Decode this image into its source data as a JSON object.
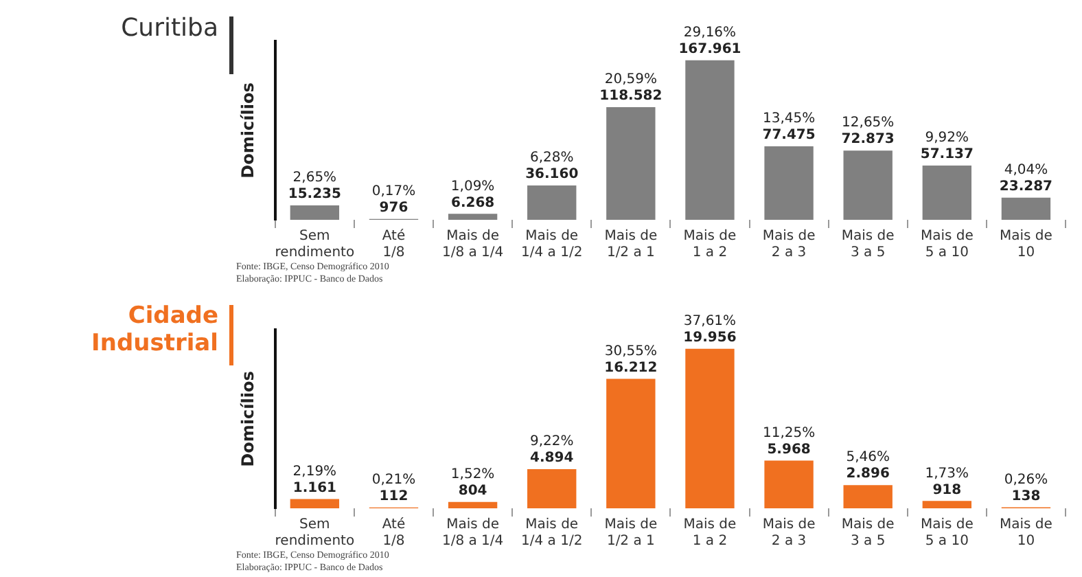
{
  "chart_data": [
    {
      "type": "bar",
      "title": "Curitiba",
      "ylabel": "Domicílios",
      "tick_labels": "x",
      "categories": [
        "Sem rendimento",
        "Até 1/8",
        "Mais de 1/8 a 1/4",
        "Mais de 1/4 a 1/2",
        "Mais de 1/2 a 1",
        "Mais de 1 a 2",
        "Mais de 2 a 3",
        "Mais de 3 a 5",
        "Mais de 5 a 10",
        "Mais de 10"
      ],
      "series": [
        {
          "color": "#808080",
          "values": [
            15235,
            976,
            6268,
            36160,
            118582,
            167961,
            77475,
            72873,
            57137,
            23287
          ],
          "value_labels": [
            "2,65%\n15.235",
            "0,17%\n976",
            "1,09%\n6.268",
            "6,28%\n36.160",
            "20,59%\n118.582",
            "29,16%\n167.961",
            "13,45%\n77.475",
            "12,65%\n72.873",
            "9,92%\n57.137",
            "4,04%\n23.287"
          ]
        }
      ],
      "annotations": [
        "Fonte: IBGE, Censo Demográfico 2010",
        "Elaboração: IPPUC - Banco de Dados"
      ]
    },
    {
      "type": "bar",
      "title": "Cidade Industrial",
      "ylabel": "Domicílios",
      "tick_labels": "x",
      "categories": [
        "Sem rendimento",
        "Até 1/8",
        "Mais de 1/8 a 1/4",
        "Mais de 1/4 a 1/2",
        "Mais de 1/2 a 1",
        "Mais de 1 a 2",
        "Mais de 2 a 3",
        "Mais de 3 a 5",
        "Mais de 5 a 10",
        "Mais de 10"
      ],
      "series": [
        {
          "color": "#f07020",
          "values": [
            1161,
            112,
            804,
            4894,
            16212,
            19956,
            5968,
            2896,
            918,
            138
          ],
          "value_labels": [
            "2,19%\n1.161",
            "0,21%\n112",
            "1,52%\n804",
            "9,22%\n4.894",
            "30,55%\n16.212",
            "37,61%\n19.956",
            "11,25%\n5.968",
            "5,46%\n2.896",
            "1,73%\n918",
            "0,26%\n138"
          ]
        }
      ],
      "annotations": [
        "Fonte: IBGE, Censo Demográfico 2010",
        "Elaboração: IPPUC - Banco de Dados"
      ]
    }
  ]
}
